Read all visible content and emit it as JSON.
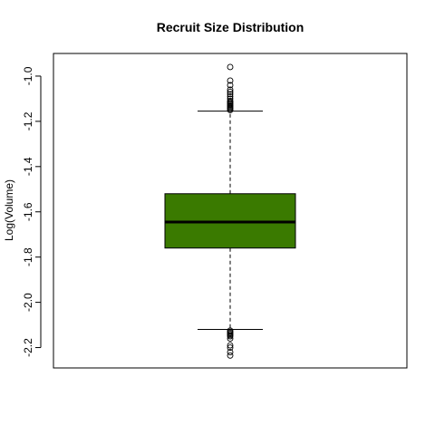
{
  "chart_data": {
    "type": "box",
    "title": "Recruit Size Distribution",
    "xlabel": "",
    "ylabel": "Log(Volume)",
    "ylim": [
      -2.29,
      -0.9
    ],
    "yticks": [
      -1.0,
      -1.2,
      -1.4,
      -1.6,
      -1.8,
      -2.0,
      -2.2
    ],
    "ytick_labels": [
      "-1.0",
      "-1.2",
      "-1.4",
      "-1.6",
      "-1.8",
      "-2.0",
      "-2.2"
    ],
    "grid": false,
    "legend": "none",
    "box_color": "#3a7a00",
    "box": {
      "whisker_low": -2.12,
      "q1": -1.76,
      "median": -1.645,
      "q3": -1.52,
      "whisker_high": -1.155
    },
    "outliers_high": [
      -0.96,
      -1.02,
      -1.04,
      -1.06,
      -1.07,
      -1.08,
      -1.09,
      -1.1,
      -1.11,
      -1.115,
      -1.12,
      -1.125,
      -1.13,
      -1.135,
      -1.14,
      -1.145,
      -1.15
    ],
    "outliers_low": [
      -2.125,
      -2.13,
      -2.135,
      -2.14,
      -2.145,
      -2.15,
      -2.16,
      -2.19,
      -2.2,
      -2.22,
      -2.235
    ]
  }
}
